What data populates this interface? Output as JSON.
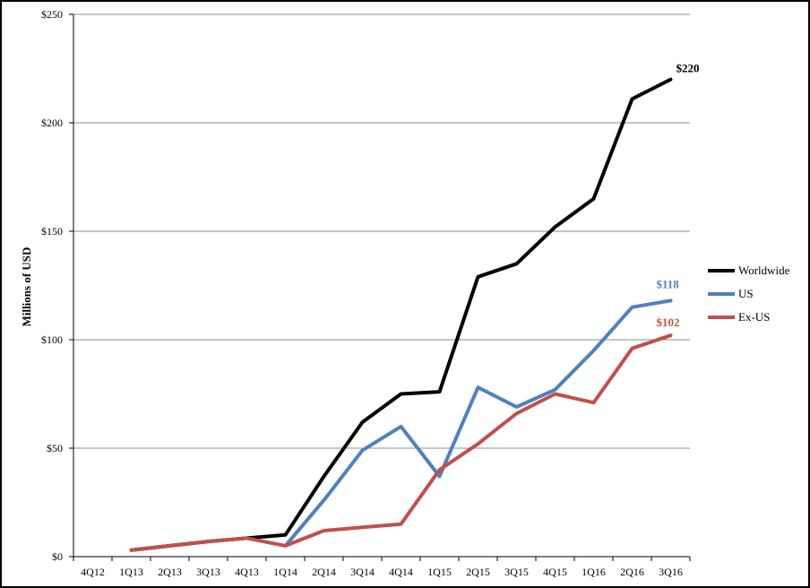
{
  "chart_data": {
    "type": "line",
    "title": "",
    "xlabel": "",
    "ylabel": "Millions of USD",
    "ylim": [
      0,
      250
    ],
    "yticks": [
      0,
      50,
      100,
      150,
      200,
      250
    ],
    "ytick_labels": [
      "$0",
      "$50",
      "$100",
      "$150",
      "$200",
      "$250"
    ],
    "grid": true,
    "legend_position": "right",
    "categories": [
      "4Q12",
      "1Q13",
      "2Q13",
      "3Q13",
      "4Q13",
      "1Q14",
      "2Q14",
      "3Q14",
      "4Q14",
      "1Q15",
      "2Q15",
      "3Q15",
      "4Q15",
      "1Q16",
      "2Q16",
      "3Q16"
    ],
    "series": [
      {
        "name": "Worldwide",
        "color": "#000000",
        "values": [
          null,
          3,
          5,
          7,
          8.5,
          10,
          37,
          62,
          75,
          76,
          129,
          135,
          152,
          165,
          211,
          220
        ],
        "end_label": "$220"
      },
      {
        "name": "US",
        "color": "#4f81bd",
        "values": [
          null,
          null,
          null,
          null,
          null,
          5,
          26,
          49,
          60,
          37,
          78,
          69,
          77,
          95,
          115,
          118
        ],
        "end_label": "$118"
      },
      {
        "name": "Ex-US",
        "color": "#c0504d",
        "values": [
          null,
          3,
          5,
          7,
          8.5,
          5,
          12,
          13.5,
          15,
          40,
          52,
          66,
          75,
          71,
          96,
          102
        ],
        "end_label": "$102"
      }
    ]
  }
}
